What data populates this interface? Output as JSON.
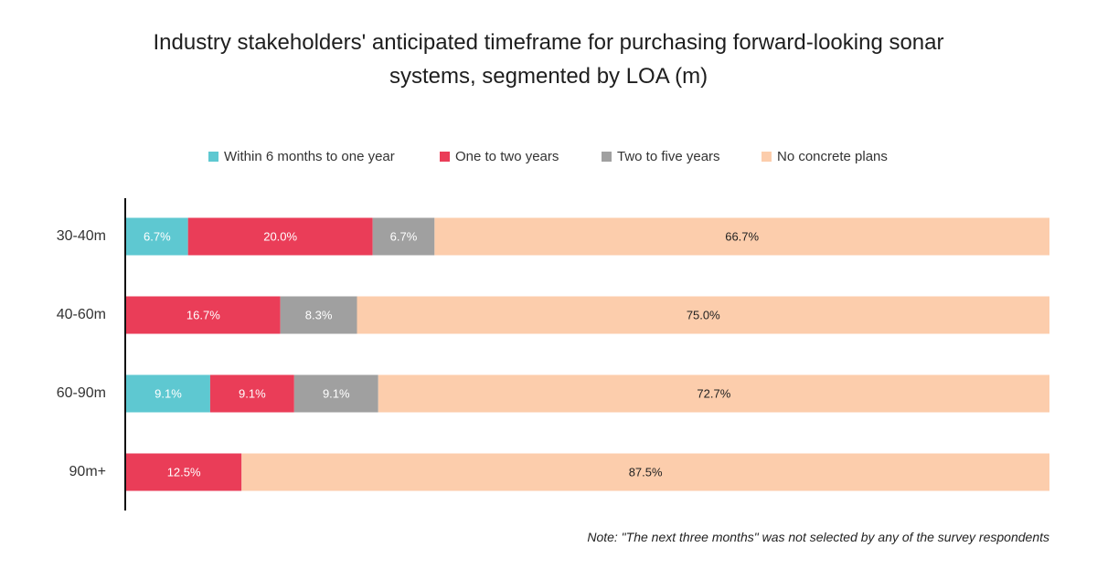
{
  "chart_data": {
    "type": "bar",
    "orientation": "horizontal",
    "stacked": true,
    "title": "Industry stakeholders' anticipated timeframe for purchasing forward-looking sonar systems, segmented by LOA (m)",
    "title_lines": [
      "Industry stakeholders' anticipated timeframe for purchasing forward-looking sonar",
      "systems, segmented by LOA (m)"
    ],
    "categories": [
      "30-40m",
      "40-60m",
      "60-90m",
      "90m+"
    ],
    "series": [
      {
        "name": "Within 6 months to one year",
        "color": "#5ec8d1",
        "values": [
          6.7,
          0,
          9.1,
          0
        ],
        "labels": [
          "6.7%",
          "",
          "9.1%",
          ""
        ]
      },
      {
        "name": "One to two years",
        "color": "#ea3d58",
        "values": [
          20.0,
          16.7,
          9.1,
          12.5
        ],
        "labels": [
          "20.0%",
          "16.7%",
          "9.1%",
          "12.5%"
        ]
      },
      {
        "name": "Two to five years",
        "color": "#a0a0a0",
        "values": [
          6.7,
          8.3,
          9.1,
          0
        ],
        "labels": [
          "6.7%",
          "8.3%",
          "9.1%",
          ""
        ]
      },
      {
        "name": "No concrete plans",
        "color": "#fccdac",
        "values": [
          66.7,
          75.0,
          72.7,
          87.5
        ],
        "labels": [
          "66.7%",
          "75.0%",
          "72.7%",
          "87.5%"
        ]
      }
    ],
    "xlim": [
      0,
      100
    ],
    "grid": false,
    "legend_position": "top"
  },
  "note": "Note: \"The next three months\" was not selected by any of the survey respondents"
}
